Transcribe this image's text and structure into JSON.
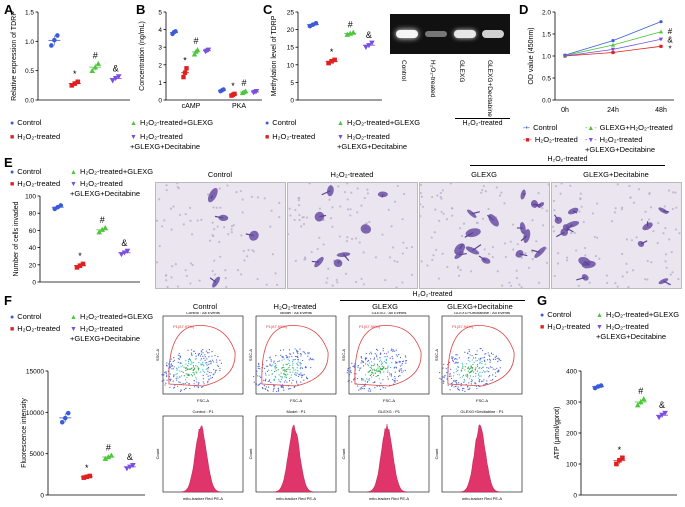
{
  "colors": {
    "control": "#3b5bd9",
    "h2o2": "#e02020",
    "glexg": "#4cc63a",
    "decitabine": "#7a4ee0"
  },
  "legend_groups": {
    "control": "Control",
    "h2o2": "H₂O₂-treated",
    "glexg": "H₂O₂-treated+GLEXG",
    "decitabine": "H₂O₂-treated\n+GLEXG+Decitabine"
  },
  "panels": {
    "A": {
      "label": "A"
    },
    "B": {
      "label": "B"
    },
    "C": {
      "label": "C"
    },
    "D": {
      "label": "D"
    },
    "E": {
      "label": "E"
    },
    "F": {
      "label": "F"
    },
    "G": {
      "label": "G"
    }
  },
  "gel": {
    "lanes": [
      "Control",
      "H₂O₂-treated",
      "GLEXG",
      "GLEXG+Decitabine"
    ],
    "bracket": "H₂O₂-treated"
  },
  "micro": {
    "titles": [
      "Control",
      "H₂O₂-treated",
      "GLEXG",
      "GLEXG+Decitabine"
    ],
    "bracket": "H₂O₂-treated"
  },
  "flow": {
    "titles": [
      "Control",
      "H₂O₂-treated",
      "GLEXG",
      "GLEXG+Decitabine"
    ],
    "bracket": "H₂O₂-treated",
    "gate_labels": [
      "P1(87.97%)",
      "P1(87.95%)",
      "P1(87.96%)",
      "P1(87.94%)"
    ],
    "scatter_headers": [
      "Control : All Events",
      "Model : All Events",
      "GLEXG : All Events",
      "GLEXG+Decitabine : All Events"
    ],
    "hist_headers": [
      "Control : P1",
      "Model : P1",
      "GLEXG : P1",
      "GLEXG+Decitabine : P1"
    ],
    "x_axis_scatter": "FSC-A",
    "y_axis_scatter": "SSC-A",
    "x_axis_hist": "mito-tracker Red PE-A",
    "y_axis_hist": "Count"
  },
  "line_legend": {
    "control": "Control",
    "h2o2": "H₂O₂-treated",
    "glexg": "GLEXG+H₂O₂-treated",
    "decitabine": "H₂O₂-treated\n+GLEXG+Decitabine"
  },
  "chart_data": [
    {
      "id": "A",
      "type": "scatter",
      "ylabel": "Relative expression of TDRP",
      "ylim": [
        0,
        1.5
      ],
      "yticks": [
        0.0,
        0.5,
        1.0,
        1.5
      ],
      "groups": [
        {
          "key": "control",
          "values": [
            0.93,
            1.02,
            1.1
          ]
        },
        {
          "key": "h2o2",
          "values": [
            0.25,
            0.28,
            0.31
          ]
        },
        {
          "key": "glexg",
          "values": [
            0.5,
            0.56,
            0.62
          ]
        },
        {
          "key": "decitabine",
          "values": [
            0.33,
            0.37,
            0.4
          ]
        }
      ],
      "annotations": [
        {
          "group": "h2o2",
          "text": "*"
        },
        {
          "group": "glexg",
          "text": "#"
        },
        {
          "group": "decitabine",
          "text": "&"
        }
      ]
    },
    {
      "id": "B",
      "type": "scatter",
      "ylabel": "Concentration (ng/mL)",
      "ylim": [
        0,
        5
      ],
      "yticks": [
        0,
        1,
        2,
        3,
        4,
        5
      ],
      "categories": [
        "cAMP",
        "PKA"
      ],
      "groups": {
        "cAMP": [
          {
            "key": "control",
            "values": [
              3.75,
              3.85,
              3.9
            ]
          },
          {
            "key": "h2o2",
            "values": [
              1.3,
              1.55,
              1.8
            ]
          },
          {
            "key": "glexg",
            "values": [
              2.6,
              2.75,
              2.85
            ]
          },
          {
            "key": "decitabine",
            "values": [
              2.75,
              2.8,
              2.85
            ]
          }
        ],
        "PKA": [
          {
            "key": "control",
            "values": [
              0.5,
              0.55,
              0.6
            ]
          },
          {
            "key": "h2o2",
            "values": [
              0.25,
              0.3,
              0.35
            ]
          },
          {
            "key": "glexg",
            "values": [
              0.4,
              0.45,
              0.5
            ]
          },
          {
            "key": "decitabine",
            "values": [
              0.42,
              0.46,
              0.5
            ]
          }
        ]
      },
      "annotations": [
        "*",
        "#",
        "*",
        "#"
      ]
    },
    {
      "id": "C",
      "type": "scatter",
      "ylabel": "Methylation level of TDRP",
      "ylim": [
        0,
        25
      ],
      "yticks": [
        0,
        5,
        10,
        15,
        20,
        25
      ],
      "groups": [
        {
          "key": "control",
          "values": [
            21,
            21.4,
            21.8
          ]
        },
        {
          "key": "h2o2",
          "values": [
            10.5,
            11,
            11.4
          ]
        },
        {
          "key": "glexg",
          "values": [
            18.6,
            18.9,
            19.2
          ]
        },
        {
          "key": "decitabine",
          "values": [
            15,
            15.5,
            16.2
          ]
        }
      ],
      "annotations": [
        {
          "group": "h2o2",
          "text": "*"
        },
        {
          "group": "glexg",
          "text": "#"
        },
        {
          "group": "decitabine",
          "text": "&"
        }
      ]
    },
    {
      "id": "D",
      "type": "line",
      "ylabel": "OD value (450nm)",
      "ylim": [
        0,
        2.0
      ],
      "yticks": [
        0.0,
        0.5,
        1.0,
        1.5,
        2.0
      ],
      "categories": [
        "0h",
        "24h",
        "48h"
      ],
      "series": [
        {
          "key": "control",
          "values": [
            1.02,
            1.35,
            1.78
          ]
        },
        {
          "key": "h2o2",
          "values": [
            1.0,
            1.08,
            1.22
          ]
        },
        {
          "key": "glexg",
          "values": [
            1.01,
            1.25,
            1.55
          ]
        },
        {
          "key": "decitabine",
          "values": [
            1.0,
            1.15,
            1.38
          ]
        }
      ],
      "annotations": [
        "#",
        "&",
        "*"
      ]
    },
    {
      "id": "E",
      "type": "scatter",
      "ylabel": "Number of cells invaded",
      "ylim": [
        0,
        100
      ],
      "yticks": [
        0,
        20,
        40,
        60,
        80,
        100
      ],
      "groups": [
        {
          "key": "control",
          "values": [
            85,
            87,
            89
          ]
        },
        {
          "key": "h2o2",
          "values": [
            17,
            19,
            21
          ]
        },
        {
          "key": "glexg",
          "values": [
            58,
            61,
            63
          ]
        },
        {
          "key": "decitabine",
          "values": [
            32,
            34,
            36
          ]
        }
      ],
      "annotations": [
        {
          "group": "h2o2",
          "text": "*"
        },
        {
          "group": "glexg",
          "text": "#"
        },
        {
          "group": "decitabine",
          "text": "&"
        }
      ]
    },
    {
      "id": "F",
      "type": "scatter",
      "ylabel": "Fluorescence intensity",
      "ylim": [
        0,
        15000
      ],
      "yticks": [
        0,
        5000,
        10000,
        15000
      ],
      "groups": [
        {
          "key": "control",
          "values": [
            8800,
            9300,
            9900
          ]
        },
        {
          "key": "h2o2",
          "values": [
            2100,
            2200,
            2300
          ]
        },
        {
          "key": "glexg",
          "values": [
            4400,
            4600,
            4800
          ]
        },
        {
          "key": "decitabine",
          "values": [
            3200,
            3400,
            3600
          ]
        }
      ],
      "annotations": [
        {
          "group": "h2o2",
          "text": "*"
        },
        {
          "group": "glexg",
          "text": "#"
        },
        {
          "group": "decitabine",
          "text": "&"
        }
      ]
    },
    {
      "id": "G",
      "type": "scatter",
      "ylabel": "ATP (μmol/gprot)",
      "ylim": [
        0,
        400
      ],
      "yticks": [
        0,
        100,
        200,
        300,
        400
      ],
      "groups": [
        {
          "key": "control",
          "values": [
            345,
            350,
            353
          ]
        },
        {
          "key": "h2o2",
          "values": [
            100,
            112,
            120
          ]
        },
        {
          "key": "glexg",
          "values": [
            290,
            300,
            310
          ]
        },
        {
          "key": "decitabine",
          "values": [
            250,
            258,
            264
          ]
        }
      ],
      "annotations": [
        {
          "group": "h2o2",
          "text": "*"
        },
        {
          "group": "glexg",
          "text": "#"
        },
        {
          "group": "decitabine",
          "text": "&"
        }
      ]
    }
  ]
}
